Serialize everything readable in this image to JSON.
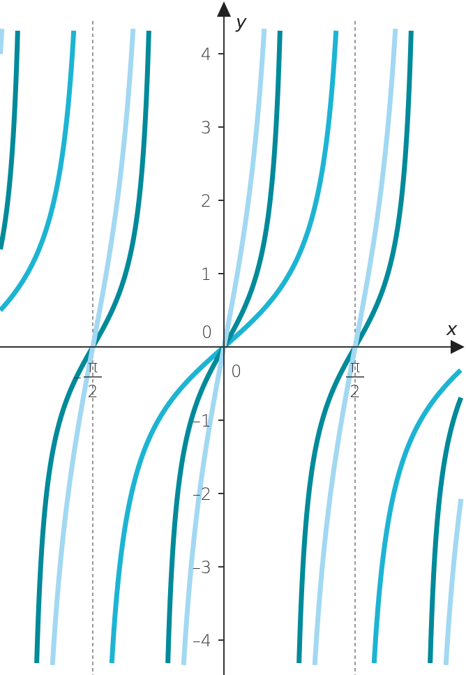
{
  "chart_data": {
    "type": "line",
    "title": "",
    "xlabel": "x",
    "ylabel": "y",
    "xlim": [
      -2.68,
      2.84
    ],
    "ylim": [
      -4.4,
      4.4
    ],
    "grid": false,
    "yticks": [
      4,
      3,
      2,
      1,
      -1,
      -2,
      -3,
      -4
    ],
    "ytick_labels": [
      "4",
      "3",
      "2",
      "1",
      "–1",
      "–2",
      "–3",
      "–4"
    ],
    "origin_labels": [
      "0",
      "0"
    ],
    "xtick_labels": [
      {
        "x": -1.5708,
        "minus": "–",
        "numerator": "π",
        "denominator": "2"
      },
      {
        "x": 1.5708,
        "minus": "",
        "numerator": "π",
        "denominator": "2"
      }
    ],
    "asymptote_lines_x": [
      -1.5708,
      1.5708
    ],
    "series": [
      {
        "expression": "tan(x)",
        "k": 1,
        "a": 1,
        "color": "#1db4d3"
      },
      {
        "expression": "tan(2x)",
        "k": 2,
        "a": 1,
        "color": "#008a9a"
      },
      {
        "expression": "3tan(2x)",
        "k": 2,
        "a": 3,
        "color": "#a2d8f2"
      }
    ],
    "axis_color": "#333333"
  }
}
